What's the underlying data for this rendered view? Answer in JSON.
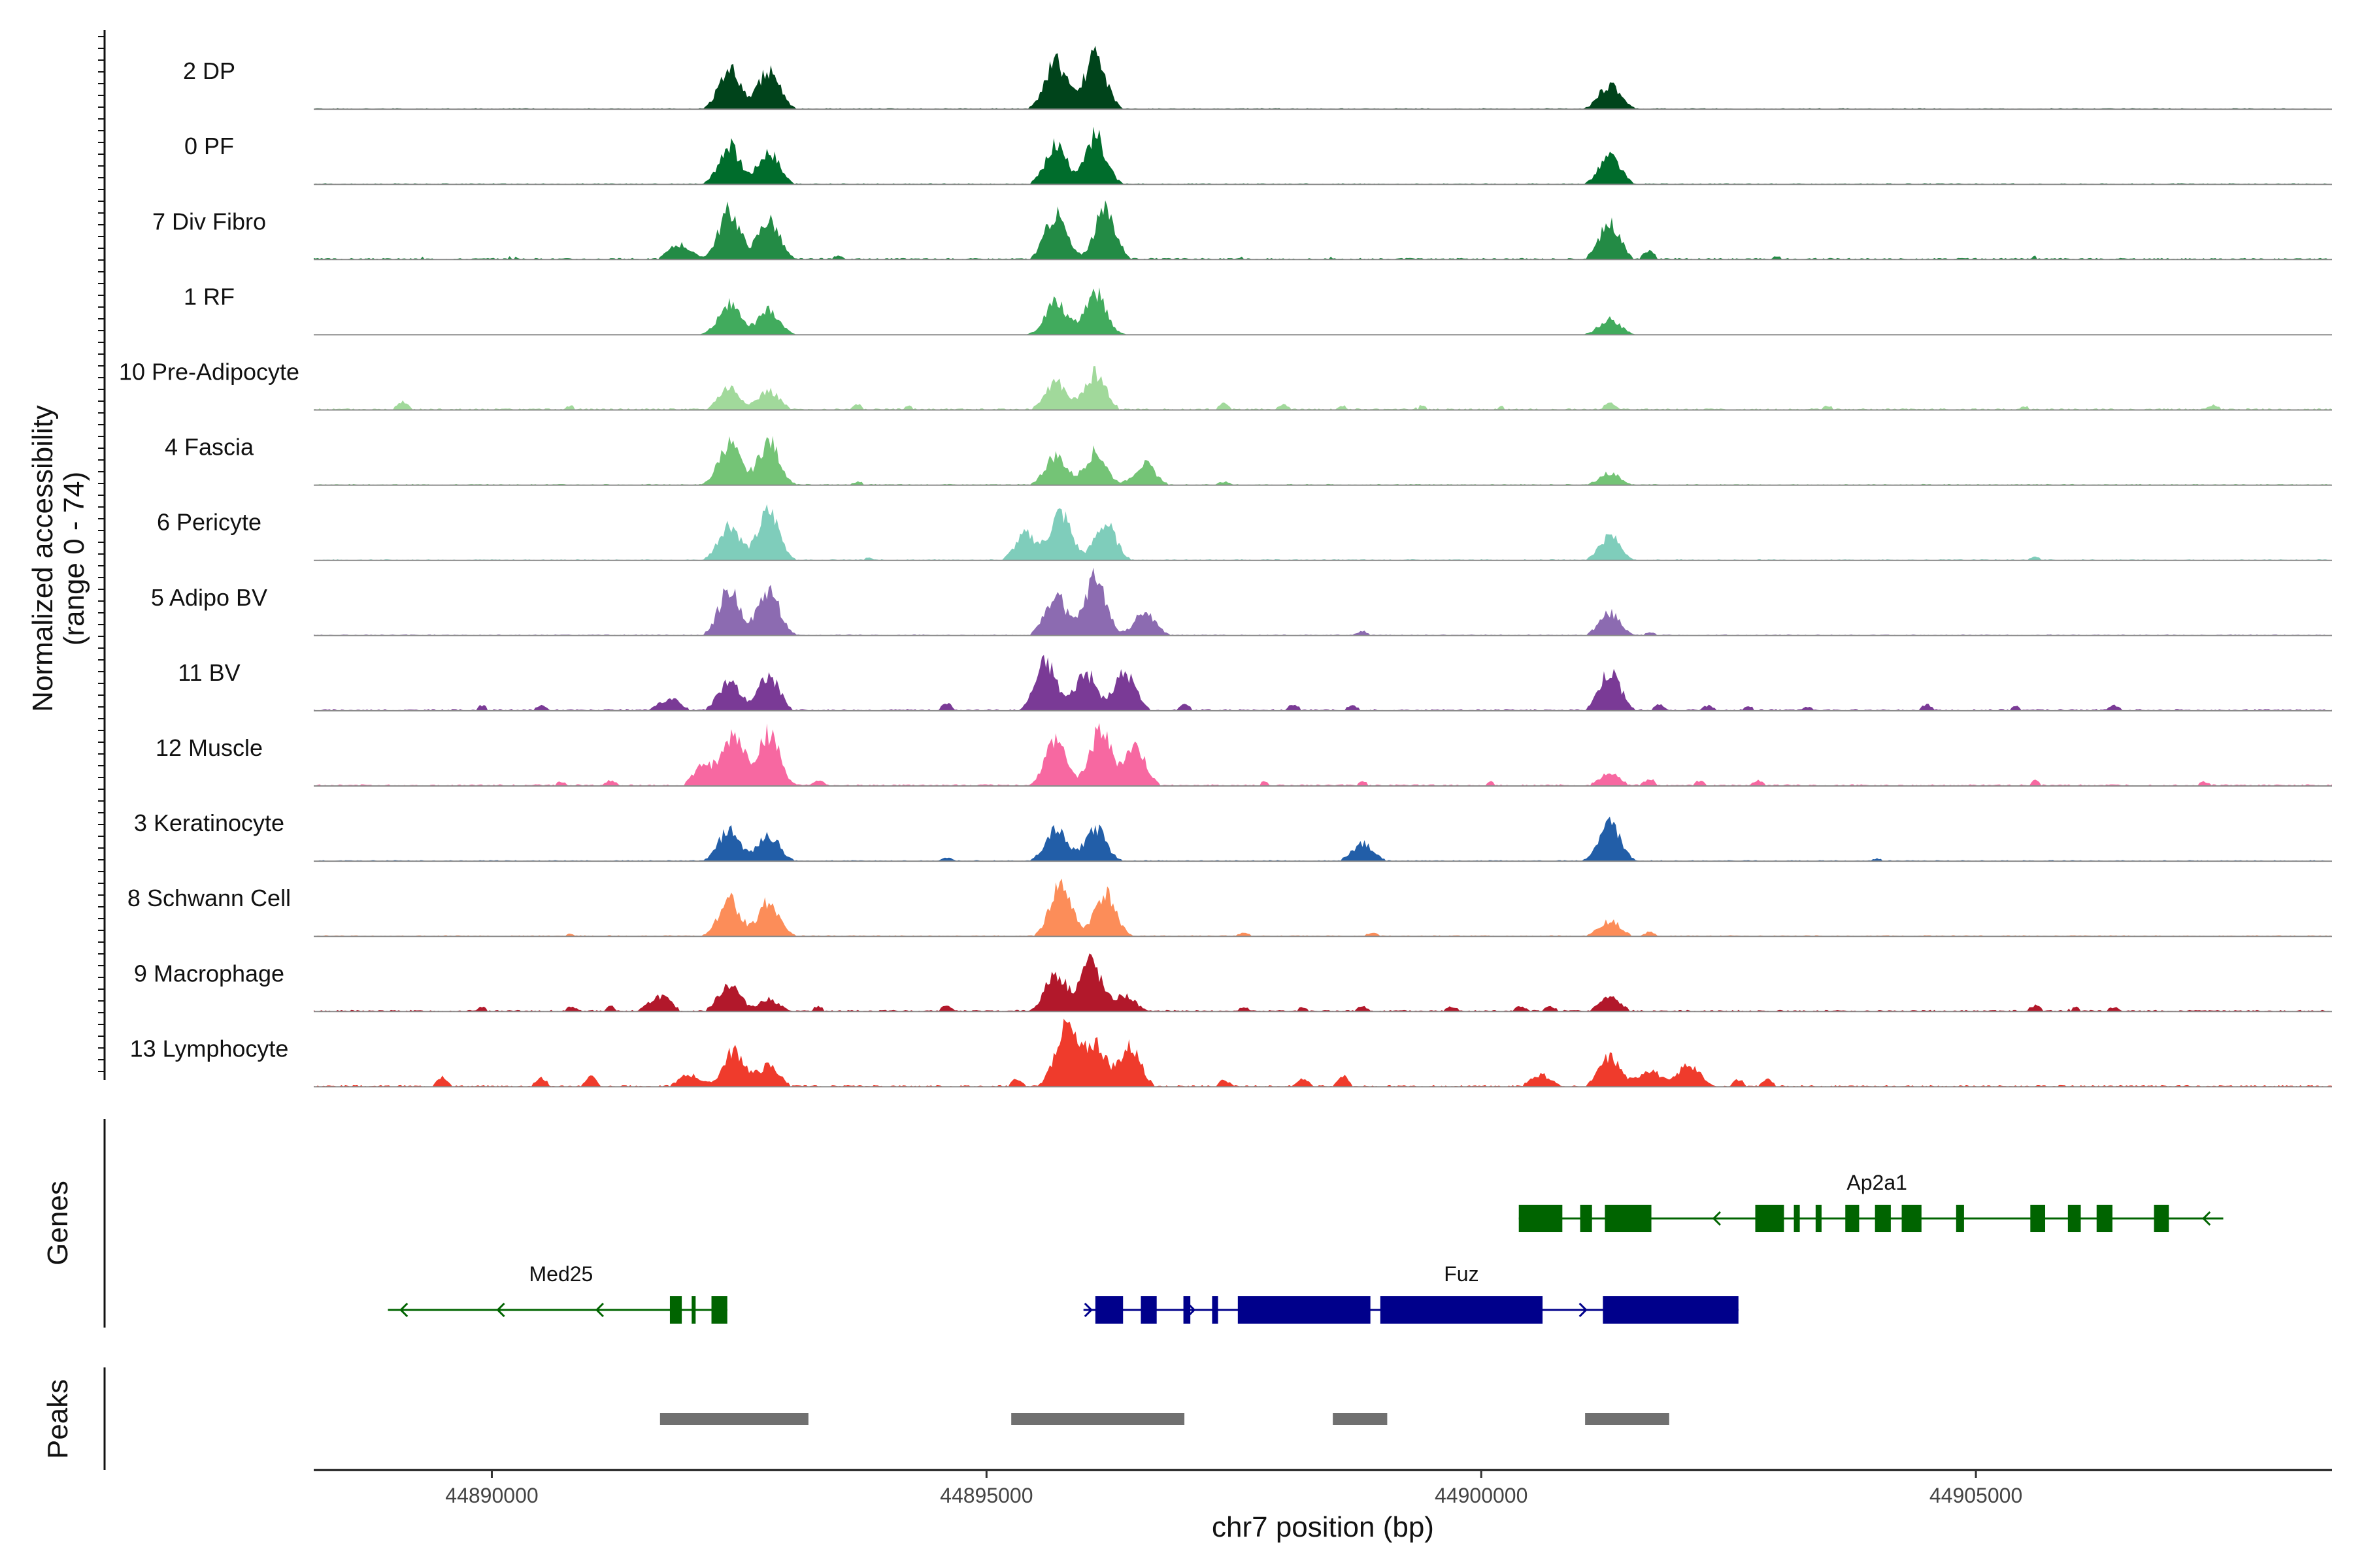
{
  "chart_data": {
    "type": "area",
    "title": "",
    "xlabel": "chr7 position (bp)",
    "ylabel": "Normalized accessibility\n(range 0 - 74)",
    "ylabel_lines": [
      "Normalized accessibility",
      "(range 0 - 74)"
    ],
    "ylim": [
      0,
      74
    ],
    "xlim": [
      44888200,
      44908600
    ],
    "x_ticks": [
      44890000,
      44895000,
      44900000,
      44905000
    ],
    "x_tick_labels": [
      "44890000",
      "44895000",
      "44900000",
      "44905000"
    ],
    "panel_labels": {
      "genes": "Genes",
      "peaks": "Peaks"
    },
    "tracks": [
      {
        "name": "2 DP",
        "color": "#00441b",
        "peaks": [
          [
            44892400,
            46
          ],
          [
            44892800,
            44
          ],
          [
            44895700,
            55
          ],
          [
            44896100,
            62
          ],
          [
            44901300,
            28
          ]
        ],
        "noise": [],
        "base": 2
      },
      {
        "name": "0 PF",
        "color": "#006d2c",
        "peaks": [
          [
            44892400,
            44
          ],
          [
            44892800,
            38
          ],
          [
            44895700,
            44
          ],
          [
            44896100,
            56
          ],
          [
            44901300,
            32
          ]
        ],
        "noise": [],
        "base": 2
      },
      {
        "name": "7 Div Fibro",
        "color": "#238b45",
        "peaks": [
          [
            44891900,
            18
          ],
          [
            44892400,
            56
          ],
          [
            44892800,
            46
          ],
          [
            44895700,
            52
          ],
          [
            44896200,
            56
          ],
          [
            44901300,
            42
          ],
          [
            44901700,
            10
          ]
        ],
        "noise": [
          [
            44889300,
            3
          ],
          [
            44890200,
            4
          ],
          [
            44890900,
            3
          ],
          [
            44893500,
            4
          ],
          [
            44897600,
            3
          ],
          [
            44898500,
            3
          ],
          [
            44903000,
            4
          ],
          [
            44905600,
            4
          ],
          [
            44906200,
            3
          ]
        ],
        "base": 3
      },
      {
        "name": "1 RF",
        "color": "#41ab5d",
        "peaks": [
          [
            44892400,
            36
          ],
          [
            44892800,
            28
          ],
          [
            44895700,
            38
          ],
          [
            44896100,
            50
          ],
          [
            44901300,
            18
          ]
        ],
        "noise": [],
        "base": 1
      },
      {
        "name": "10 Pre-Adipocyte",
        "color": "#a1d99b",
        "peaks": [
          [
            44892400,
            26
          ],
          [
            44892800,
            22
          ],
          [
            44895700,
            32
          ],
          [
            44896100,
            42
          ],
          [
            44901300,
            10
          ]
        ],
        "noise": [
          [
            44889100,
            10
          ],
          [
            44890800,
            5
          ],
          [
            44893700,
            6
          ],
          [
            44894200,
            5
          ],
          [
            44897400,
            7
          ],
          [
            44898000,
            6
          ],
          [
            44898600,
            5
          ],
          [
            44899400,
            5
          ],
          [
            44900200,
            4
          ],
          [
            44903500,
            5
          ],
          [
            44905500,
            4
          ],
          [
            44907400,
            6
          ]
        ],
        "base": 3
      },
      {
        "name": "4 Fascia",
        "color": "#74c476",
        "peaks": [
          [
            44892400,
            48
          ],
          [
            44892800,
            50
          ],
          [
            44895700,
            34
          ],
          [
            44896100,
            38
          ],
          [
            44896600,
            24
          ],
          [
            44901300,
            14
          ]
        ],
        "noise": [
          [
            44893700,
            4
          ],
          [
            44897400,
            4
          ]
        ],
        "base": 2
      },
      {
        "name": "6 Pericyte",
        "color": "#7fcdbb",
        "peaks": [
          [
            44892400,
            42
          ],
          [
            44892800,
            56
          ],
          [
            44895400,
            30
          ],
          [
            44895750,
            54
          ],
          [
            44896200,
            42
          ],
          [
            44901300,
            28
          ]
        ],
        "noise": [
          [
            44905600,
            4
          ],
          [
            44893800,
            3
          ]
        ],
        "base": 2
      },
      {
        "name": "5 Adipo BV",
        "color": "#8c6bb1",
        "peaks": [
          [
            44892400,
            52
          ],
          [
            44892800,
            52
          ],
          [
            44895700,
            46
          ],
          [
            44896100,
            66
          ],
          [
            44896600,
            26
          ],
          [
            44901300,
            26
          ]
        ],
        "noise": [
          [
            44898800,
            5
          ],
          [
            44901700,
            4
          ]
        ],
        "base": 2
      },
      {
        "name": "11 BV",
        "color": "#7a3a96",
        "peaks": [
          [
            44891800,
            14
          ],
          [
            44892400,
            34
          ],
          [
            44892800,
            40
          ],
          [
            44895600,
            56
          ],
          [
            44896000,
            44
          ],
          [
            44896400,
            44
          ],
          [
            44901300,
            46
          ]
        ],
        "noise": [
          [
            44889900,
            6
          ],
          [
            44890500,
            6
          ],
          [
            44894600,
            8
          ],
          [
            44897000,
            7
          ],
          [
            44898100,
            7
          ],
          [
            44898700,
            6
          ],
          [
            44901800,
            7
          ],
          [
            44902300,
            6
          ],
          [
            44902700,
            5
          ],
          [
            44903300,
            5
          ],
          [
            44904500,
            7
          ],
          [
            44905400,
            5
          ],
          [
            44906400,
            6
          ]
        ],
        "base": 3
      },
      {
        "name": "12 Muscle",
        "color": "#f768a1",
        "peaks": [
          [
            44892150,
            24
          ],
          [
            44892450,
            58
          ],
          [
            44892800,
            60
          ],
          [
            44895700,
            52
          ],
          [
            44896150,
            62
          ],
          [
            44896500,
            44
          ]
        ],
        "noise": [
          [
            44890700,
            5
          ],
          [
            44891200,
            6
          ],
          [
            44893300,
            6
          ],
          [
            44897800,
            5
          ],
          [
            44898800,
            5
          ],
          [
            44900100,
            5
          ],
          [
            44901300,
            14
          ],
          [
            44901700,
            8
          ],
          [
            44902200,
            6
          ],
          [
            44902800,
            6
          ],
          [
            44905600,
            6
          ],
          [
            44907300,
            5
          ]
        ],
        "base": 3
      },
      {
        "name": "3 Keratinocyte",
        "color": "#225ea8",
        "peaks": [
          [
            44892400,
            36
          ],
          [
            44892800,
            30
          ],
          [
            44895700,
            36
          ],
          [
            44896100,
            38
          ],
          [
            44898800,
            20
          ],
          [
            44901300,
            42
          ]
        ],
        "noise": [
          [
            44894600,
            4
          ],
          [
            44904000,
            3
          ]
        ],
        "base": 2
      },
      {
        "name": "8 Schwann Cell",
        "color": "#fc8d59",
        "peaks": [
          [
            44892400,
            42
          ],
          [
            44892800,
            40
          ],
          [
            44895750,
            58
          ],
          [
            44896200,
            48
          ],
          [
            44901300,
            18
          ]
        ],
        "noise": [
          [
            44898900,
            4
          ],
          [
            44897600,
            4
          ],
          [
            44901700,
            5
          ],
          [
            44890800,
            3
          ]
        ],
        "base": 2
      },
      {
        "name": "9 Macrophage",
        "color": "#b2182b",
        "peaks": [
          [
            44891700,
            18
          ],
          [
            44892400,
            32
          ],
          [
            44892800,
            14
          ],
          [
            44895700,
            44
          ],
          [
            44896050,
            58
          ],
          [
            44896400,
            18
          ],
          [
            44901300,
            16
          ]
        ],
        "noise": [
          [
            44889900,
            5
          ],
          [
            44890800,
            6
          ],
          [
            44891200,
            6
          ],
          [
            44893300,
            6
          ],
          [
            44894600,
            7
          ],
          [
            44897600,
            5
          ],
          [
            44898200,
            5
          ],
          [
            44898800,
            6
          ],
          [
            44899700,
            6
          ],
          [
            44900400,
            6
          ],
          [
            44900700,
            6
          ],
          [
            44905600,
            7
          ],
          [
            44906000,
            5
          ],
          [
            44906400,
            5
          ]
        ],
        "base": 3
      },
      {
        "name": "13 Lymphocyte",
        "color": "#ef3b2c",
        "peaks": [
          [
            44892000,
            14
          ],
          [
            44892450,
            42
          ],
          [
            44892800,
            24
          ],
          [
            44895800,
            70
          ],
          [
            44896100,
            50
          ],
          [
            44896450,
            46
          ],
          [
            44901300,
            34
          ],
          [
            44901700,
            20
          ],
          [
            44902100,
            26
          ]
        ],
        "noise": [
          [
            44889500,
            12
          ],
          [
            44890500,
            10
          ],
          [
            44891000,
            12
          ],
          [
            44895300,
            8
          ],
          [
            44897400,
            8
          ],
          [
            44898200,
            10
          ],
          [
            44898600,
            12
          ],
          [
            44900600,
            14
          ],
          [
            44902600,
            8
          ],
          [
            44902900,
            8
          ]
        ],
        "base": 3
      }
    ],
    "genes": [
      {
        "name": "Ap2a1",
        "color": "#006400",
        "strand": "-",
        "row": 0,
        "start": 44900380,
        "end": 44907500,
        "exons": [
          [
            44900380,
            44900820
          ],
          [
            44901000,
            44901120
          ],
          [
            44901250,
            44901720
          ],
          [
            44902770,
            44903060
          ],
          [
            44903160,
            44903220
          ],
          [
            44903380,
            44903440
          ],
          [
            44903680,
            44903820
          ],
          [
            44903980,
            44904140
          ],
          [
            44904250,
            44904450
          ],
          [
            44904800,
            44904880
          ],
          [
            44905550,
            44905700
          ],
          [
            44905930,
            44906060
          ],
          [
            44906220,
            44906380
          ],
          [
            44906800,
            44906950
          ]
        ],
        "arrows": [
          44902350,
          44903740,
          44907300
        ]
      },
      {
        "name": "Med25",
        "color": "#006400",
        "strand": "-",
        "row": 1,
        "start": 44888950,
        "end": 44892380,
        "exons": [
          [
            44891800,
            44891920
          ],
          [
            44892020,
            44892060
          ],
          [
            44892220,
            44892380
          ]
        ],
        "arrows": [
          44889080,
          44890060,
          44891060
        ]
      },
      {
        "name": "Fuz",
        "color": "#00008b",
        "strand": "+",
        "row": 1,
        "start": 44895980,
        "end": 44902600,
        "exons": [
          [
            44896100,
            44896380
          ],
          [
            44896560,
            44896720
          ],
          [
            44896990,
            44897060
          ],
          [
            44897280,
            44897340
          ],
          [
            44897540,
            44898880
          ],
          [
            44898980,
            44900620
          ],
          [
            44901230,
            44902600
          ]
        ],
        "arrows": [
          44896060,
          44897100,
          44901060
        ]
      }
    ],
    "peaks": [
      [
        44891700,
        44893200
      ],
      [
        44895250,
        44897000
      ],
      [
        44898500,
        44899050
      ],
      [
        44901050,
        44901900
      ]
    ]
  }
}
